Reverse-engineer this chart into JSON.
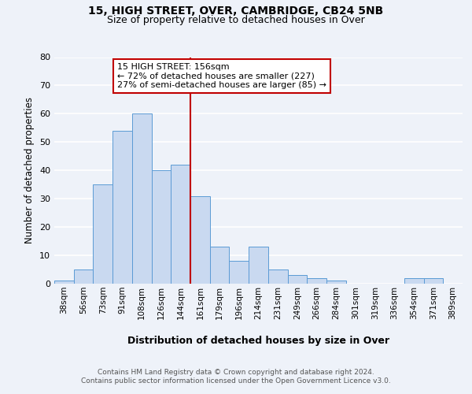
{
  "title": "15, HIGH STREET, OVER, CAMBRIDGE, CB24 5NB",
  "subtitle": "Size of property relative to detached houses in Over",
  "xlabel": "Distribution of detached houses by size in Over",
  "ylabel": "Number of detached properties",
  "bin_labels": [
    "38sqm",
    "56sqm",
    "73sqm",
    "91sqm",
    "108sqm",
    "126sqm",
    "144sqm",
    "161sqm",
    "179sqm",
    "196sqm",
    "214sqm",
    "231sqm",
    "249sqm",
    "266sqm",
    "284sqm",
    "301sqm",
    "319sqm",
    "336sqm",
    "354sqm",
    "371sqm",
    "389sqm"
  ],
  "bar_heights": [
    1,
    5,
    35,
    54,
    60,
    40,
    42,
    31,
    13,
    8,
    13,
    5,
    3,
    2,
    1,
    0,
    0,
    0,
    2,
    2,
    0
  ],
  "bar_color": "#c9d9f0",
  "bar_edge_color": "#5b9bd5",
  "vline_color": "#c00000",
  "annotation_text": "15 HIGH STREET: 156sqm\n← 72% of detached houses are smaller (227)\n27% of semi-detached houses are larger (85) →",
  "annotation_box_color": "#ffffff",
  "annotation_box_edge_color": "#c00000",
  "ylim": [
    0,
    80
  ],
  "yticks": [
    0,
    10,
    20,
    30,
    40,
    50,
    60,
    70,
    80
  ],
  "footer_line1": "Contains HM Land Registry data © Crown copyright and database right 2024.",
  "footer_line2": "Contains public sector information licensed under the Open Government Licence v3.0.",
  "bg_color": "#eef2f9",
  "plot_bg_color": "#eef2f9",
  "grid_color": "#ffffff"
}
